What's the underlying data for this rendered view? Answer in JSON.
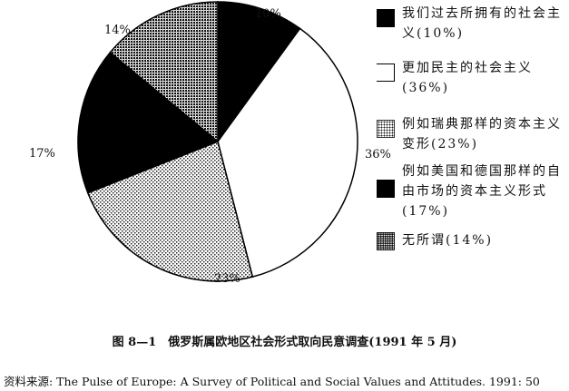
{
  "chart_data": {
    "type": "pie",
    "start": "top",
    "direction": "clockwise",
    "slices": [
      {
        "label": "我们过去所拥有的社会主义(10%)",
        "value": 10,
        "value_label": "10%",
        "fill": "solid-black"
      },
      {
        "label": "更加民主的社会主义(36%)",
        "value": 36,
        "value_label": "36%",
        "fill": "white"
      },
      {
        "label": "例如瑞典那样的资本主义变形(23%)",
        "value": 23,
        "value_label": "23%",
        "fill": "light-dots"
      },
      {
        "label": "例如美国和德国那样的自由市场的资本主义形式(17%)",
        "value": 17,
        "value_label": "17%",
        "fill": "solid-black"
      },
      {
        "label": "无所谓(14%)",
        "value": 14,
        "value_label": "14%",
        "fill": "dense-dots"
      }
    ],
    "title": "图 8—1　俄罗斯属欧地区社会形式取向民意调查(1991 年 5 月)",
    "legend_position": "right"
  },
  "source": "资料来源: The Pulse of Europe: A Survey of Political and Social Values and Attitudes. 1991: 50"
}
